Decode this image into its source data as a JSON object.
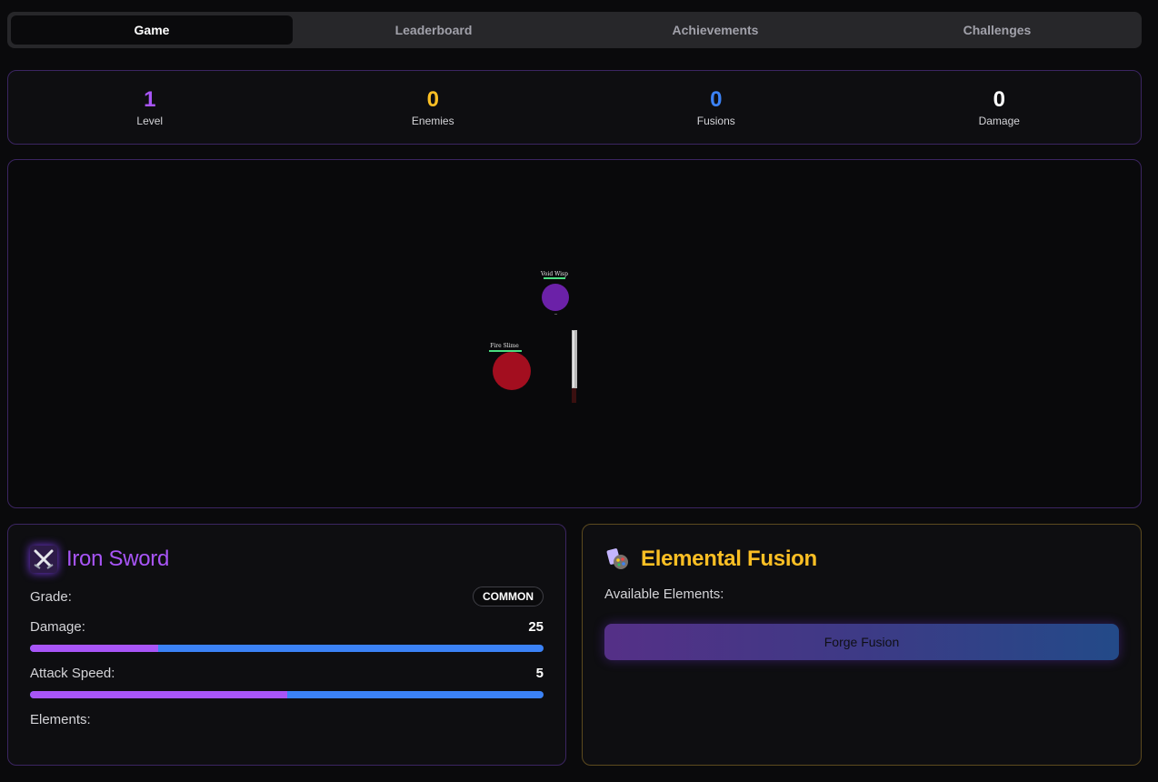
{
  "tabs": [
    {
      "label": "Game",
      "active": true
    },
    {
      "label": "Leaderboard",
      "active": false
    },
    {
      "label": "Achievements",
      "active": false
    },
    {
      "label": "Challenges",
      "active": false
    }
  ],
  "stats": [
    {
      "value": "1",
      "label": "Level",
      "color": "#a855f7"
    },
    {
      "value": "0",
      "label": "Enemies",
      "color": "#fbbf24"
    },
    {
      "value": "0",
      "label": "Fusions",
      "color": "#3b82f6"
    },
    {
      "value": "0",
      "label": "Damage",
      "color": "#ffffff"
    }
  ],
  "arena": {
    "enemies": [
      {
        "name": "Void Wisp",
        "color": "#6b21a8",
        "health": 1.0
      },
      {
        "name": "Fire Slime",
        "color": "#a30e1f",
        "health": 1.0
      }
    ],
    "player_weapon": "iron-sword"
  },
  "weapon": {
    "icon": "crossed-swords-icon",
    "name": "Iron Sword",
    "grade_label": "Grade:",
    "grade": "COMMON",
    "damage_label": "Damage:",
    "damage": "25",
    "damage_fill": 0.25,
    "speed_label": "Attack Speed:",
    "speed": "5",
    "speed_fill": 0.5,
    "elements_label": "Elements:"
  },
  "fusion": {
    "icon": "palette-icon",
    "title": "Elemental Fusion",
    "available_label": "Available Elements:",
    "button_label": "Forge Fusion"
  }
}
